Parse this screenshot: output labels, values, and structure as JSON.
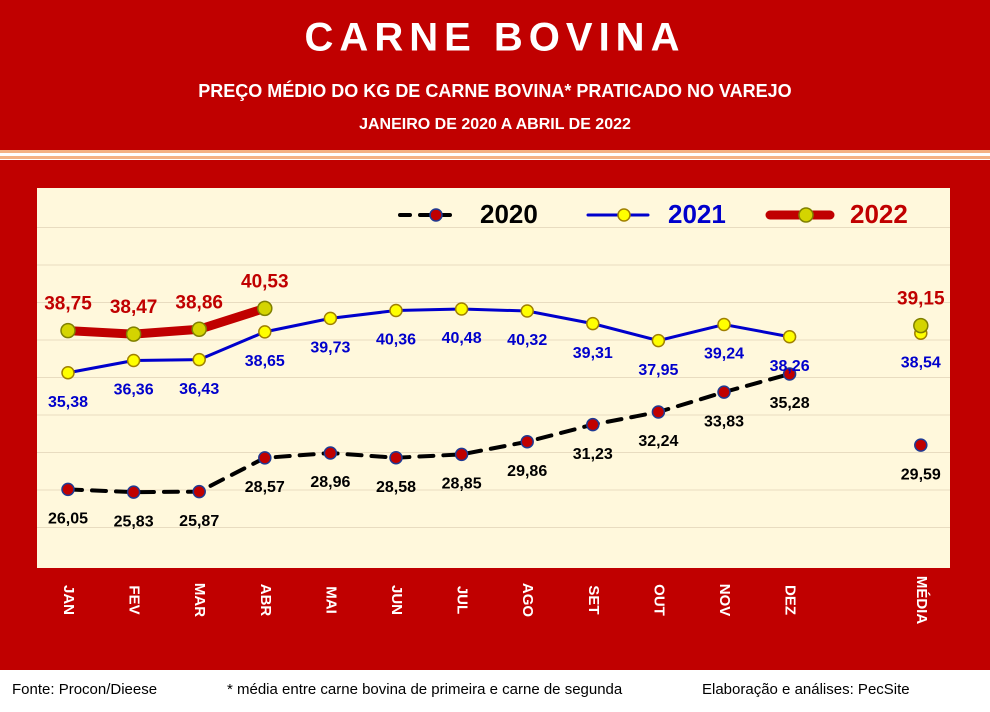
{
  "chart_data": {
    "type": "line",
    "title": "CARNE BOVINA",
    "subtitle": "PREÇO MÉDIO DO KG DE CARNE BOVINA* PRATICADO NO VAREJO",
    "period": "JANEIRO DE 2020 A ABRIL DE 2022",
    "categories": [
      "JAN",
      "FEV",
      "MAR",
      "ABR",
      "MAI",
      "JUN",
      "JUL",
      "AGO",
      "SET",
      "OUT",
      "NOV",
      "DEZ",
      null,
      "MÉDIA"
    ],
    "series": [
      {
        "name": "2020",
        "color": "#000000",
        "marker_color": "#c00000",
        "values": [
          26.05,
          25.83,
          25.87,
          28.57,
          28.96,
          28.58,
          28.85,
          29.86,
          31.23,
          32.24,
          33.83,
          35.28,
          null,
          29.59
        ],
        "value_labels": [
          "26,05",
          "25,83",
          "25,87",
          "28,57",
          "28,96",
          "28,58",
          "28,85",
          "29,86",
          "31,23",
          "32,24",
          "33,83",
          "35,28",
          null,
          "29,59"
        ]
      },
      {
        "name": "2021",
        "color": "#0000cc",
        "marker_color": "#ffff00",
        "values": [
          35.38,
          36.36,
          36.43,
          38.65,
          39.73,
          40.36,
          40.48,
          40.32,
          39.31,
          37.95,
          39.24,
          38.26,
          null,
          38.54
        ],
        "value_labels": [
          "35,38",
          "36,36",
          "36,43",
          "38,65",
          "39,73",
          "40,36",
          "40,48",
          "40,32",
          "39,31",
          "37,95",
          "39,24",
          "38,26",
          null,
          "38,54"
        ]
      },
      {
        "name": "2022",
        "color": "#c00000",
        "marker_color": "#d4d400",
        "values": [
          38.75,
          38.47,
          38.86,
          40.53,
          null,
          null,
          null,
          null,
          null,
          null,
          null,
          null,
          null,
          39.15
        ],
        "value_labels": [
          "38,75",
          "38,47",
          "38,86",
          "40,53",
          null,
          null,
          null,
          null,
          null,
          null,
          null,
          null,
          null,
          "39,15"
        ]
      }
    ],
    "ylim": [
      20,
      50
    ],
    "yticks": [
      23,
      26,
      29,
      32,
      35,
      38,
      41,
      44,
      47
    ],
    "grid": true,
    "notes": [
      "Fonte: Procon/Dieese",
      "* média entre carne bovina de primeira e carne de segunda",
      "Elaboração e análises: PecSite"
    ]
  }
}
